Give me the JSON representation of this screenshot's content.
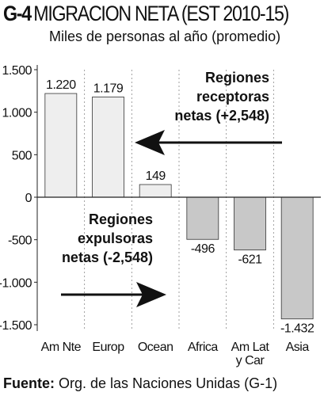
{
  "header": {
    "code": "G-4",
    "title": "MIGRACION NETA (EST 2010-15)",
    "subtitle": "Miles de personas al año (promedio)"
  },
  "chart_data": {
    "type": "bar",
    "categories": [
      "Am Nte",
      "Europ",
      "Ocean",
      "Africa",
      "Am Lat\ny Car",
      "Asia"
    ],
    "values": [
      1220,
      1179,
      149,
      -496,
      -621,
      -1432
    ],
    "value_labels": [
      "1.220",
      "1.179",
      "149",
      "-496",
      "-621",
      "-1.432"
    ],
    "ylim": [
      -1500,
      1500
    ],
    "yticks": [
      1500,
      1000,
      500,
      0,
      -500,
      -1000,
      -1500
    ],
    "ytick_labels": [
      "1.500",
      "1.000",
      "500",
      "0",
      "-500",
      "-1.000",
      "-1.500"
    ],
    "grid": "vertical-dashed",
    "colors": {
      "positive": "#eeeeee",
      "negative": "#c8c8c8",
      "stroke": "#333333"
    },
    "annotations": [
      {
        "lines": [
          "Regiones",
          "receptoras",
          "netas (+2,548)"
        ],
        "arrow": "left"
      },
      {
        "lines": [
          "Regiones",
          "expulsoras",
          "netas (-2,548)"
        ],
        "arrow": "right"
      }
    ]
  },
  "footer": {
    "source_label": "Fuente:",
    "source_text": "Org. de las Naciones Unidas (G-1)"
  }
}
